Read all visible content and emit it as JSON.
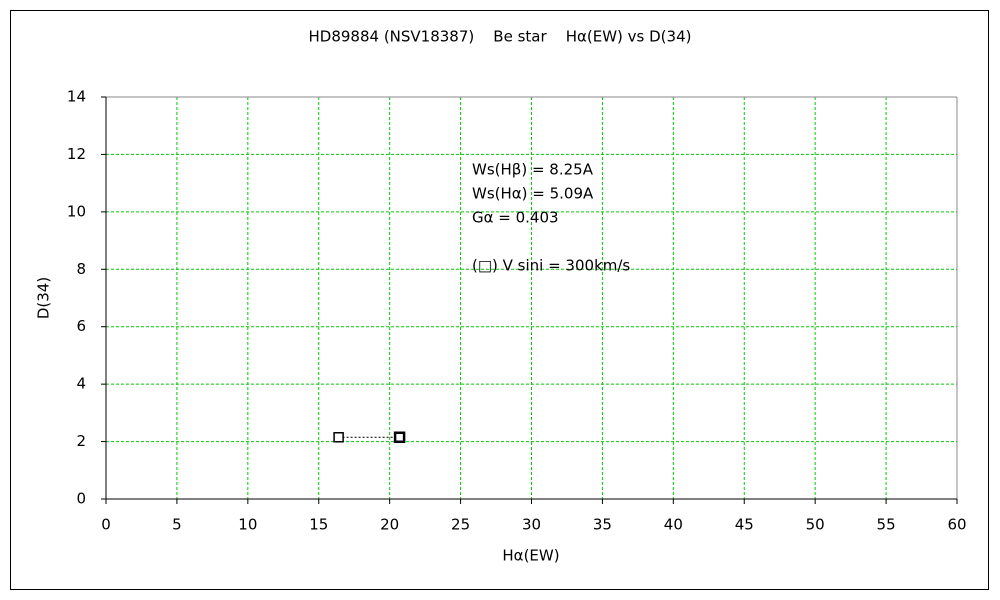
{
  "chart_data": {
    "type": "scatter",
    "title": "HD89884 (NSV18387)    Be star    Hα(EW) vs D(34)",
    "xlabel": "Hα(EW)",
    "ylabel": "D(34)",
    "series": [
      {
        "x": [
          16.4,
          20.7
        ],
        "values": [
          2.15,
          2.15
        ],
        "color": "#000000"
      }
    ],
    "connected": true,
    "xlim": [
      0,
      60
    ],
    "ylim": [
      0,
      14
    ],
    "xticks": [
      0,
      5,
      10,
      15,
      20,
      25,
      30,
      35,
      40,
      45,
      50,
      55,
      60
    ],
    "yticks": [
      0,
      2,
      4,
      6,
      8,
      10,
      12,
      14
    ],
    "grid": true,
    "annotations": [
      "Ws(Hβ) = 8.25A",
      "Ws(Hα) = 5.09A",
      "Gα = 0.403",
      "(□) V sini = 300km/s"
    ]
  }
}
